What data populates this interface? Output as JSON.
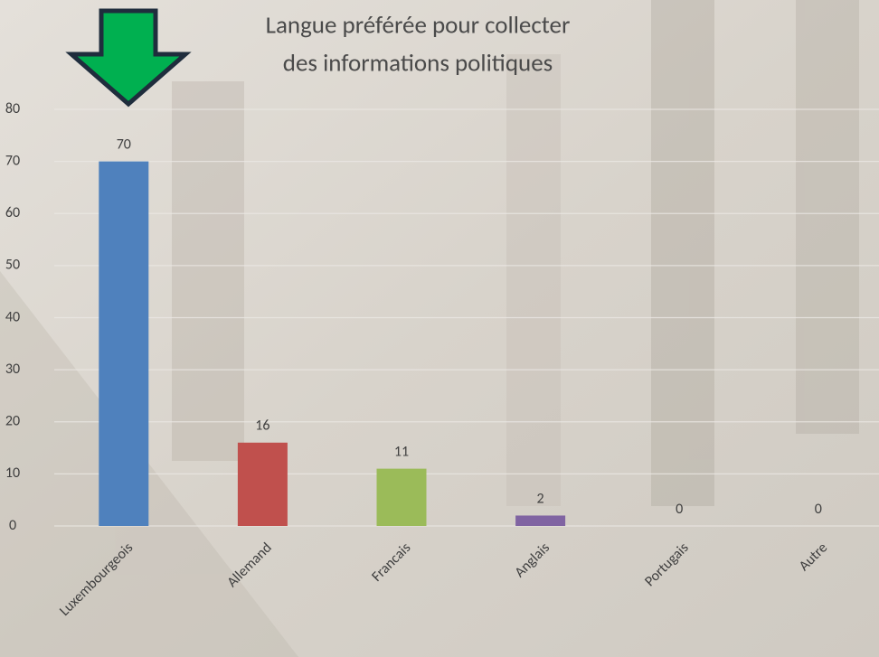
{
  "chart_data": {
    "type": "bar",
    "title": [
      "Langue préférée pour collecter",
      "des informations politiques"
    ],
    "categories": [
      "Luxembourgeois",
      "Allemand",
      "Francais",
      "Anglais",
      "Portugais",
      "Autre"
    ],
    "values": [
      70,
      16,
      11,
      2,
      0,
      0
    ],
    "colors": [
      "#4f81bd",
      "#c0504d",
      "#9bbb59",
      "#8064a2",
      "#4bacc6",
      "#f79646"
    ],
    "ylim": [
      0,
      80
    ],
    "yticks": [
      0,
      10,
      20,
      30,
      40,
      50,
      60,
      70,
      80
    ],
    "grid": true
  }
}
